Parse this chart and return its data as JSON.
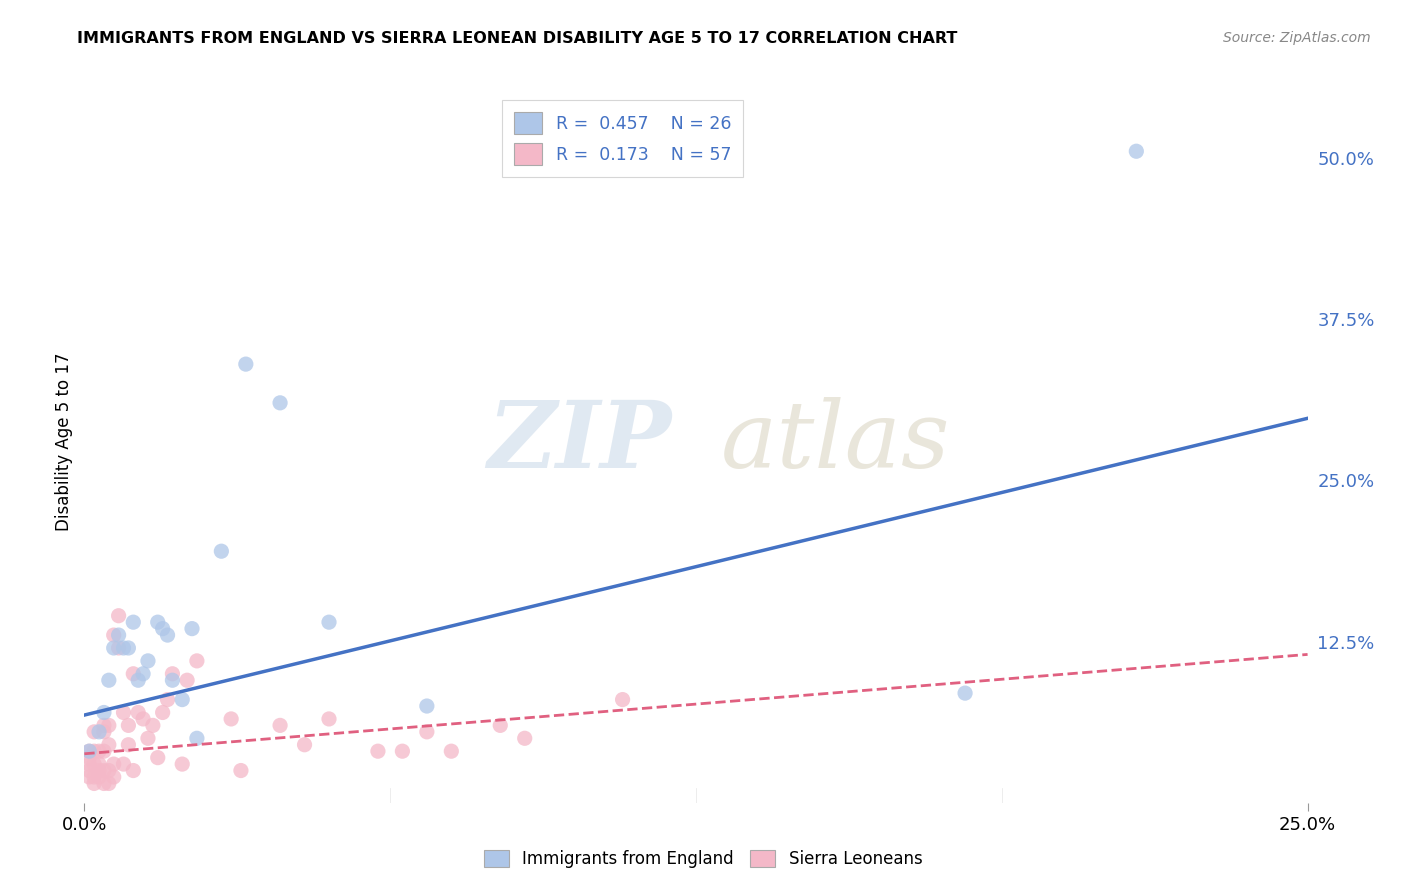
{
  "title": "IMMIGRANTS FROM ENGLAND VS SIERRA LEONEAN DISABILITY AGE 5 TO 17 CORRELATION CHART",
  "source": "Source: ZipAtlas.com",
  "ylabel": "Disability Age 5 to 17",
  "ytick_labels": [
    "50.0%",
    "37.5%",
    "25.0%",
    "12.5%"
  ],
  "ytick_values": [
    0.5,
    0.375,
    0.25,
    0.125
  ],
  "xlim": [
    0.0,
    0.25
  ],
  "ylim": [
    0.0,
    0.56
  ],
  "legend_r1": "R = 0.457",
  "legend_n1": "N = 26",
  "legend_r2": "R = 0.173",
  "legend_n2": "N = 57",
  "blue_color": "#aec6e8",
  "pink_color": "#f4b8c8",
  "trend_blue": "#4472c4",
  "trend_pink": "#e06080",
  "blue_scatter_x": [
    0.001,
    0.003,
    0.004,
    0.005,
    0.006,
    0.007,
    0.008,
    0.009,
    0.01,
    0.011,
    0.012,
    0.013,
    0.015,
    0.016,
    0.017,
    0.018,
    0.02,
    0.022,
    0.023,
    0.028,
    0.033,
    0.04,
    0.05,
    0.07,
    0.18,
    0.215
  ],
  "blue_scatter_y": [
    0.04,
    0.055,
    0.07,
    0.095,
    0.12,
    0.13,
    0.12,
    0.12,
    0.14,
    0.095,
    0.1,
    0.11,
    0.14,
    0.135,
    0.13,
    0.095,
    0.08,
    0.135,
    0.05,
    0.195,
    0.34,
    0.31,
    0.14,
    0.075,
    0.085,
    0.505
  ],
  "pink_scatter_x": [
    0.001,
    0.001,
    0.001,
    0.001,
    0.001,
    0.002,
    0.002,
    0.002,
    0.002,
    0.002,
    0.003,
    0.003,
    0.003,
    0.003,
    0.004,
    0.004,
    0.004,
    0.004,
    0.004,
    0.005,
    0.005,
    0.005,
    0.005,
    0.006,
    0.006,
    0.006,
    0.007,
    0.007,
    0.008,
    0.008,
    0.009,
    0.009,
    0.01,
    0.01,
    0.011,
    0.012,
    0.013,
    0.014,
    0.015,
    0.016,
    0.017,
    0.018,
    0.02,
    0.021,
    0.023,
    0.03,
    0.032,
    0.04,
    0.045,
    0.05,
    0.06,
    0.065,
    0.07,
    0.075,
    0.085,
    0.09,
    0.11
  ],
  "pink_scatter_y": [
    0.02,
    0.025,
    0.03,
    0.035,
    0.04,
    0.015,
    0.02,
    0.03,
    0.04,
    0.055,
    0.02,
    0.025,
    0.03,
    0.04,
    0.015,
    0.025,
    0.04,
    0.055,
    0.06,
    0.015,
    0.025,
    0.045,
    0.06,
    0.02,
    0.03,
    0.13,
    0.12,
    0.145,
    0.03,
    0.07,
    0.045,
    0.06,
    0.025,
    0.1,
    0.07,
    0.065,
    0.05,
    0.06,
    0.035,
    0.07,
    0.08,
    0.1,
    0.03,
    0.095,
    0.11,
    0.065,
    0.025,
    0.06,
    0.045,
    0.065,
    0.04,
    0.04,
    0.055,
    0.04,
    0.06,
    0.05,
    0.08
  ],
  "blue_line_x": [
    0.0,
    0.25
  ],
  "blue_line_y": [
    0.068,
    0.298
  ],
  "pink_line_x": [
    0.0,
    0.25
  ],
  "pink_line_y": [
    0.038,
    0.115
  ],
  "watermark_zip": "ZIP",
  "watermark_atlas": "atlas",
  "background_color": "#ffffff",
  "grid_color": "#cccccc",
  "legend_text_color": "#333333",
  "legend_value_color": "#4472c4",
  "right_axis_color": "#4472c4",
  "bottom_legend_blue_label": "Immigrants from England",
  "bottom_legend_pink_label": "Sierra Leoneans"
}
